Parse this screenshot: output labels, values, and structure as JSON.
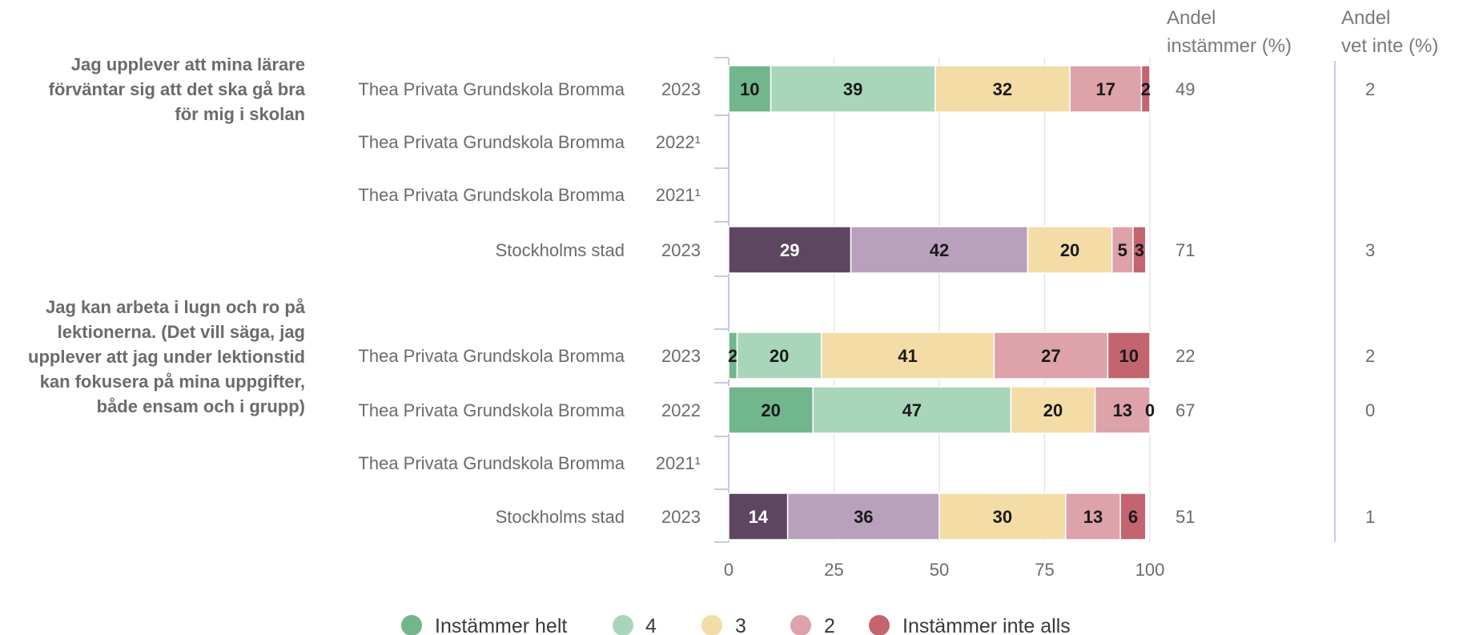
{
  "chart_data": {
    "type": "bar",
    "orientation": "horizontal",
    "stacked": true,
    "xlim": [
      0,
      100
    ],
    "xticks": [
      0,
      25,
      50,
      75,
      100
    ],
    "grid": true,
    "legend_position": "bottom",
    "column_headers": {
      "agree": [
        "Andel",
        "instämmer (%)"
      ],
      "dont_know": [
        "Andel",
        "vet inte (%)"
      ]
    },
    "legend": [
      {
        "label": "Instämmer helt",
        "color": "#72b68d"
      },
      {
        "label": "4",
        "color": "#a9d5bb"
      },
      {
        "label": "3",
        "color": "#f3dca6"
      },
      {
        "label": "2",
        "color": "#dda2aa"
      },
      {
        "label": "Instämmer inte alls",
        "color": "#c4646f"
      }
    ],
    "groups": [
      {
        "question": [
          "Jag upplever att mina lärare",
          "förväntar sig att det ska gå bra",
          "för mig i skolan"
        ],
        "rows": [
          {
            "unit": "Thea Privata Grundskola Bromma",
            "year": "2023",
            "palette": "school",
            "values": [
              10,
              39,
              32,
              17,
              2
            ],
            "agree": "49",
            "dont_know": "2"
          },
          {
            "unit": "Thea Privata Grundskola Bromma",
            "year": "2022¹",
            "palette": "school",
            "values": [],
            "agree": "",
            "dont_know": ""
          },
          {
            "unit": "Thea Privata Grundskola Bromma",
            "year": "2021¹",
            "palette": "school",
            "values": [],
            "agree": "",
            "dont_know": ""
          },
          {
            "unit": "Stockholms stad",
            "year": "2023",
            "palette": "city",
            "values": [
              29,
              42,
              20,
              5,
              3
            ],
            "agree": "71",
            "dont_know": "3"
          }
        ]
      },
      {
        "question": [
          "Jag kan arbeta i lugn och ro på",
          "lektionerna. (Det vill säga, jag",
          "upplever att jag under lektionstid",
          "kan fokusera på mina uppgifter,",
          "både ensam och i grupp)"
        ],
        "rows": [
          {
            "unit": "Thea Privata Grundskola Bromma",
            "year": "2023",
            "palette": "school",
            "values": [
              2,
              20,
              41,
              27,
              10
            ],
            "agree": "22",
            "dont_know": "2"
          },
          {
            "unit": "Thea Privata Grundskola Bromma",
            "year": "2022",
            "palette": "school",
            "values": [
              20,
              47,
              20,
              13,
              0
            ],
            "agree": "67",
            "dont_know": "0"
          },
          {
            "unit": "Thea Privata Grundskola Bromma",
            "year": "2021¹",
            "palette": "school",
            "values": [],
            "agree": "",
            "dont_know": ""
          },
          {
            "unit": "Stockholms stad",
            "year": "2023",
            "palette": "city",
            "values": [
              14,
              36,
              30,
              13,
              6
            ],
            "agree": "51",
            "dont_know": "1"
          }
        ]
      }
    ],
    "palettes": {
      "school": [
        "#72b68d",
        "#a9d5bb",
        "#f3dca6",
        "#dda2aa",
        "#c4646f"
      ],
      "city": [
        "#5e4662",
        "#b9a1bd",
        "#f3dca6",
        "#dda2aa",
        "#c4646f"
      ]
    },
    "label_colors": {
      "school": [
        "#1a1a1a",
        "#1a1a1a",
        "#1a1a1a",
        "#1a1a1a",
        "#1a1a1a"
      ],
      "city": [
        "#ffffff",
        "#1a1a1a",
        "#1a1a1a",
        "#1a1a1a",
        "#1a1a1a"
      ]
    }
  }
}
